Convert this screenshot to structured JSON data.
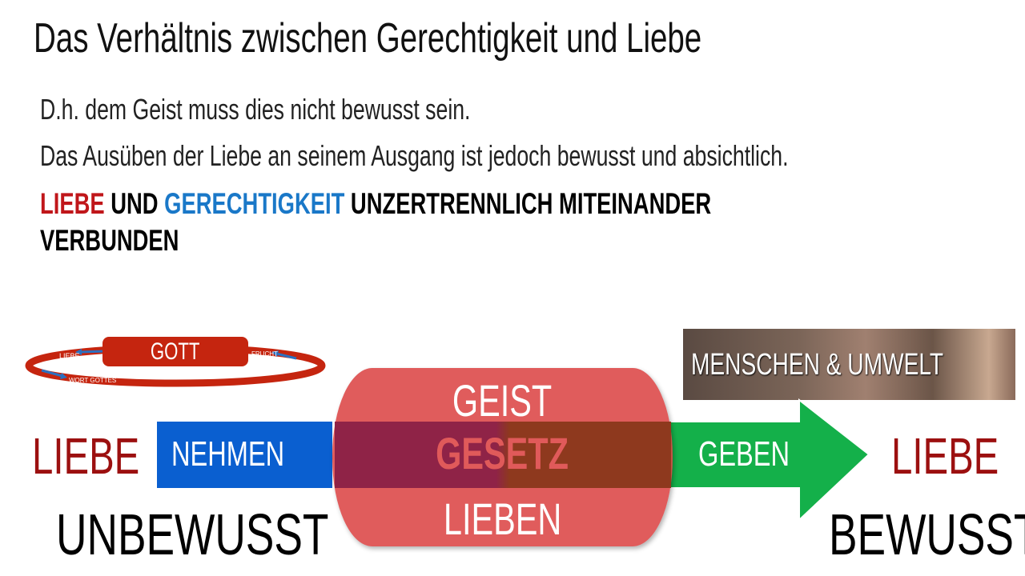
{
  "title": "Das Verhältnis zwischen Gerechtigkeit und Liebe",
  "body": {
    "line1": "D.h. dem Geist muss dies nicht bewusst sein.",
    "line2": "Das Ausüben der Liebe an seinem Ausgang ist jedoch bewusst und absichtlich.",
    "headline": {
      "liebe": "LIEBE",
      "und": " UND ",
      "gerechtigkeit": "GERECHTIGKEIT",
      "rest": " UNZERTRENNLICH MITEINANDER",
      "line2": "VERBUNDEN"
    }
  },
  "cycle": {
    "center": "GOTT",
    "labels": [
      "LIEBE",
      "FRUCHT",
      "WORT GOTTES"
    ]
  },
  "photo": {
    "caption": "MENSCHEN & UMWELT"
  },
  "flow": {
    "left_label": "LIEBE",
    "left_sub": "UNBEWUSST",
    "input": "NEHMEN",
    "cylinder": [
      "GEIST",
      "GESETZ",
      "LIEBEN"
    ],
    "output": "GEBEN",
    "right_label": "LIEBE",
    "right_sub": "BEWUSST"
  },
  "colors": {
    "red": "#c5250f",
    "blue": "#0a5fd0",
    "green": "#14b04a",
    "dark_red": "#9c1010"
  }
}
